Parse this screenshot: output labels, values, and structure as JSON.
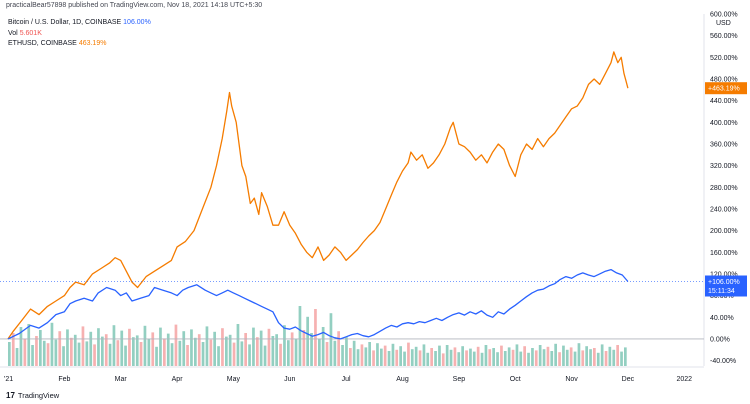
{
  "header": {
    "text": "practicalBear57898 published on TradingView.com, Nov 18, 2021 14:18 UTC+5:30"
  },
  "legend": {
    "btc": {
      "label": "Bitcoin / U.S. Dollar, 1D, COINBASE",
      "value": "106.00%"
    },
    "vol": {
      "label": "Vol",
      "value": "5.601K"
    },
    "eth": {
      "label": "ETHUSD, COINBASE",
      "value": "463.19%"
    }
  },
  "footer": {
    "logo_glyph": "17",
    "brand": "TradingView"
  },
  "colors": {
    "btc": "#2962ff",
    "eth": "#f57c00",
    "vol_up": "#80c7b6",
    "vol_down": "#f4a3a3",
    "axis": "#131722",
    "grid_zero": "#b2b5be"
  },
  "chart_data": {
    "type": "line",
    "y_axis_unit": "USD",
    "y_ticks": [
      "600.00%",
      "560.00%",
      "520.00%",
      "480.00%",
      "440.00%",
      "400.00%",
      "360.00%",
      "320.00%",
      "280.00%",
      "240.00%",
      "200.00%",
      "160.00%",
      "120.00%",
      "80.00%",
      "40.00%",
      "0.00%",
      "-40.00%"
    ],
    "ylim": [
      -50,
      600
    ],
    "x_ticks": [
      "'21",
      "Feb",
      "Mar",
      "Apr",
      "May",
      "Jun",
      "Jul",
      "Aug",
      "Sep",
      "Oct",
      "Nov",
      "Dec",
      "2022"
    ],
    "x_tick_positions_month": [
      0,
      1,
      2,
      3,
      4,
      5,
      6,
      7,
      8,
      9,
      10,
      11,
      12
    ],
    "xlim_month": [
      0,
      12.35
    ],
    "last_labels": {
      "eth": "+463.19%",
      "btc": [
        "+106.00%",
        "15:11:34"
      ]
    },
    "series": [
      {
        "key": "eth",
        "points": [
          [
            0.0,
            0
          ],
          [
            0.1,
            15
          ],
          [
            0.25,
            35
          ],
          [
            0.4,
            55
          ],
          [
            0.55,
            45
          ],
          [
            0.7,
            60
          ],
          [
            0.85,
            70
          ],
          [
            1.0,
            80
          ],
          [
            1.1,
            95
          ],
          [
            1.2,
            105
          ],
          [
            1.35,
            100
          ],
          [
            1.5,
            120
          ],
          [
            1.65,
            130
          ],
          [
            1.8,
            140
          ],
          [
            1.9,
            150
          ],
          [
            2.0,
            145
          ],
          [
            2.1,
            125
          ],
          [
            2.2,
            105
          ],
          [
            2.3,
            95
          ],
          [
            2.45,
            115
          ],
          [
            2.6,
            125
          ],
          [
            2.75,
            135
          ],
          [
            2.9,
            145
          ],
          [
            3.0,
            170
          ],
          [
            3.15,
            180
          ],
          [
            3.3,
            200
          ],
          [
            3.45,
            240
          ],
          [
            3.6,
            280
          ],
          [
            3.7,
            320
          ],
          [
            3.8,
            370
          ],
          [
            3.88,
            420
          ],
          [
            3.93,
            455
          ],
          [
            3.97,
            430
          ],
          [
            4.05,
            400
          ],
          [
            4.15,
            320
          ],
          [
            4.22,
            300
          ],
          [
            4.3,
            250
          ],
          [
            4.37,
            260
          ],
          [
            4.45,
            230
          ],
          [
            4.5,
            270
          ],
          [
            4.6,
            245
          ],
          [
            4.7,
            210
          ],
          [
            4.8,
            210
          ],
          [
            4.9,
            235
          ],
          [
            5.0,
            210
          ],
          [
            5.1,
            195
          ],
          [
            5.2,
            175
          ],
          [
            5.3,
            160
          ],
          [
            5.4,
            150
          ],
          [
            5.5,
            170
          ],
          [
            5.6,
            145
          ],
          [
            5.7,
            155
          ],
          [
            5.8,
            170
          ],
          [
            5.9,
            160
          ],
          [
            6.0,
            145
          ],
          [
            6.1,
            155
          ],
          [
            6.2,
            165
          ],
          [
            6.3,
            178
          ],
          [
            6.4,
            190
          ],
          [
            6.5,
            200
          ],
          [
            6.6,
            215
          ],
          [
            6.7,
            240
          ],
          [
            6.8,
            265
          ],
          [
            6.9,
            290
          ],
          [
            7.0,
            310
          ],
          [
            7.1,
            325
          ],
          [
            7.15,
            345
          ],
          [
            7.25,
            330
          ],
          [
            7.35,
            340
          ],
          [
            7.45,
            315
          ],
          [
            7.55,
            325
          ],
          [
            7.65,
            340
          ],
          [
            7.75,
            360
          ],
          [
            7.85,
            390
          ],
          [
            7.9,
            400
          ],
          [
            7.95,
            380
          ],
          [
            8.0,
            360
          ],
          [
            8.1,
            355
          ],
          [
            8.2,
            345
          ],
          [
            8.3,
            330
          ],
          [
            8.4,
            340
          ],
          [
            8.5,
            325
          ],
          [
            8.6,
            345
          ],
          [
            8.7,
            360
          ],
          [
            8.8,
            350
          ],
          [
            8.9,
            320
          ],
          [
            9.0,
            300
          ],
          [
            9.1,
            340
          ],
          [
            9.2,
            360
          ],
          [
            9.3,
            350
          ],
          [
            9.4,
            370
          ],
          [
            9.5,
            355
          ],
          [
            9.6,
            370
          ],
          [
            9.7,
            380
          ],
          [
            9.8,
            395
          ],
          [
            9.9,
            410
          ],
          [
            10.0,
            425
          ],
          [
            10.1,
            430
          ],
          [
            10.2,
            445
          ],
          [
            10.3,
            470
          ],
          [
            10.4,
            480
          ],
          [
            10.5,
            470
          ],
          [
            10.6,
            490
          ],
          [
            10.7,
            510
          ],
          [
            10.75,
            530
          ],
          [
            10.82,
            510
          ],
          [
            10.88,
            520
          ],
          [
            10.93,
            490
          ],
          [
            10.97,
            475
          ],
          [
            11.0,
            463
          ]
        ]
      },
      {
        "key": "btc",
        "points": [
          [
            0.0,
            0
          ],
          [
            0.2,
            10
          ],
          [
            0.4,
            25
          ],
          [
            0.55,
            20
          ],
          [
            0.7,
            30
          ],
          [
            0.85,
            45
          ],
          [
            1.0,
            50
          ],
          [
            1.1,
            65
          ],
          [
            1.2,
            70
          ],
          [
            1.35,
            75
          ],
          [
            1.5,
            70
          ],
          [
            1.6,
            85
          ],
          [
            1.75,
            95
          ],
          [
            1.9,
            90
          ],
          [
            2.0,
            80
          ],
          [
            2.1,
            85
          ],
          [
            2.2,
            70
          ],
          [
            2.35,
            75
          ],
          [
            2.5,
            80
          ],
          [
            2.6,
            95
          ],
          [
            2.75,
            90
          ],
          [
            2.9,
            85
          ],
          [
            3.0,
            80
          ],
          [
            3.1,
            90
          ],
          [
            3.2,
            95
          ],
          [
            3.35,
            100
          ],
          [
            3.5,
            90
          ],
          [
            3.6,
            85
          ],
          [
            3.7,
            80
          ],
          [
            3.8,
            85
          ],
          [
            3.9,
            90
          ],
          [
            4.0,
            85
          ],
          [
            4.1,
            80
          ],
          [
            4.2,
            75
          ],
          [
            4.3,
            70
          ],
          [
            4.4,
            65
          ],
          [
            4.5,
            60
          ],
          [
            4.6,
            55
          ],
          [
            4.7,
            50
          ],
          [
            4.8,
            30
          ],
          [
            4.9,
            20
          ],
          [
            5.0,
            18
          ],
          [
            5.1,
            22
          ],
          [
            5.2,
            15
          ],
          [
            5.3,
            10
          ],
          [
            5.4,
            5
          ],
          [
            5.5,
            8
          ],
          [
            5.6,
            12
          ],
          [
            5.7,
            6
          ],
          [
            5.8,
            2
          ],
          [
            5.9,
            0
          ],
          [
            6.0,
            4
          ],
          [
            6.1,
            8
          ],
          [
            6.2,
            10
          ],
          [
            6.3,
            6
          ],
          [
            6.4,
            4
          ],
          [
            6.5,
            8
          ],
          [
            6.6,
            14
          ],
          [
            6.7,
            20
          ],
          [
            6.8,
            25
          ],
          [
            6.9,
            22
          ],
          [
            7.0,
            28
          ],
          [
            7.1,
            30
          ],
          [
            7.2,
            28
          ],
          [
            7.3,
            32
          ],
          [
            7.4,
            30
          ],
          [
            7.5,
            34
          ],
          [
            7.6,
            38
          ],
          [
            7.7,
            34
          ],
          [
            7.8,
            40
          ],
          [
            7.9,
            45
          ],
          [
            8.0,
            48
          ],
          [
            8.1,
            44
          ],
          [
            8.2,
            50
          ],
          [
            8.3,
            46
          ],
          [
            8.4,
            52
          ],
          [
            8.5,
            44
          ],
          [
            8.6,
            40
          ],
          [
            8.7,
            50
          ],
          [
            8.8,
            46
          ],
          [
            8.9,
            55
          ],
          [
            9.0,
            62
          ],
          [
            9.1,
            70
          ],
          [
            9.2,
            78
          ],
          [
            9.3,
            85
          ],
          [
            9.4,
            90
          ],
          [
            9.5,
            92
          ],
          [
            9.6,
            98
          ],
          [
            9.7,
            102
          ],
          [
            9.8,
            110
          ],
          [
            9.9,
            115
          ],
          [
            10.0,
            112
          ],
          [
            10.1,
            118
          ],
          [
            10.2,
            122
          ],
          [
            10.3,
            118
          ],
          [
            10.4,
            115
          ],
          [
            10.5,
            120
          ],
          [
            10.6,
            125
          ],
          [
            10.7,
            128
          ],
          [
            10.8,
            122
          ],
          [
            10.9,
            118
          ],
          [
            11.0,
            106
          ]
        ]
      }
    ],
    "volume": {
      "max": 100,
      "bars": [
        40,
        55,
        30,
        65,
        45,
        70,
        35,
        50,
        60,
        42,
        38,
        72,
        44,
        58,
        33,
        61,
        47,
        52,
        39,
        66,
        41,
        57,
        36,
        63,
        49,
        53,
        37,
        68,
        43,
        59,
        34,
        62,
        48,
        51,
        40,
        67,
        45,
        56,
        32,
        64,
        46,
        54,
        38,
        69,
        42,
        58,
        35,
        61,
        47,
        53,
        40,
        66,
        44,
        57,
        33,
        63,
        49,
        52,
        39,
        70,
        41,
        55,
        36,
        64,
        48,
        59,
        34,
        62,
        50,
        53,
        37,
        68,
        43,
        56,
        45,
        100,
        60,
        82,
        55,
        95,
        45,
        65,
        40,
        88,
        42,
        58,
        35,
        48,
        30,
        42,
        28,
        36,
        31,
        40,
        26,
        38,
        29,
        34,
        25,
        37,
        27,
        33,
        24,
        39,
        28,
        32,
        26,
        36,
        22,
        30,
        25,
        34,
        21,
        35,
        27,
        31,
        23,
        33,
        26,
        29,
        24,
        32,
        22,
        35,
        28,
        30,
        23,
        34,
        25,
        31,
        27,
        36,
        24,
        33,
        22,
        30,
        26,
        35,
        28,
        32,
        25,
        37,
        23,
        34,
        27,
        31,
        24,
        38,
        26,
        33,
        28,
        30,
        22,
        36,
        25,
        32,
        27,
        35,
        24,
        31
      ]
    }
  }
}
